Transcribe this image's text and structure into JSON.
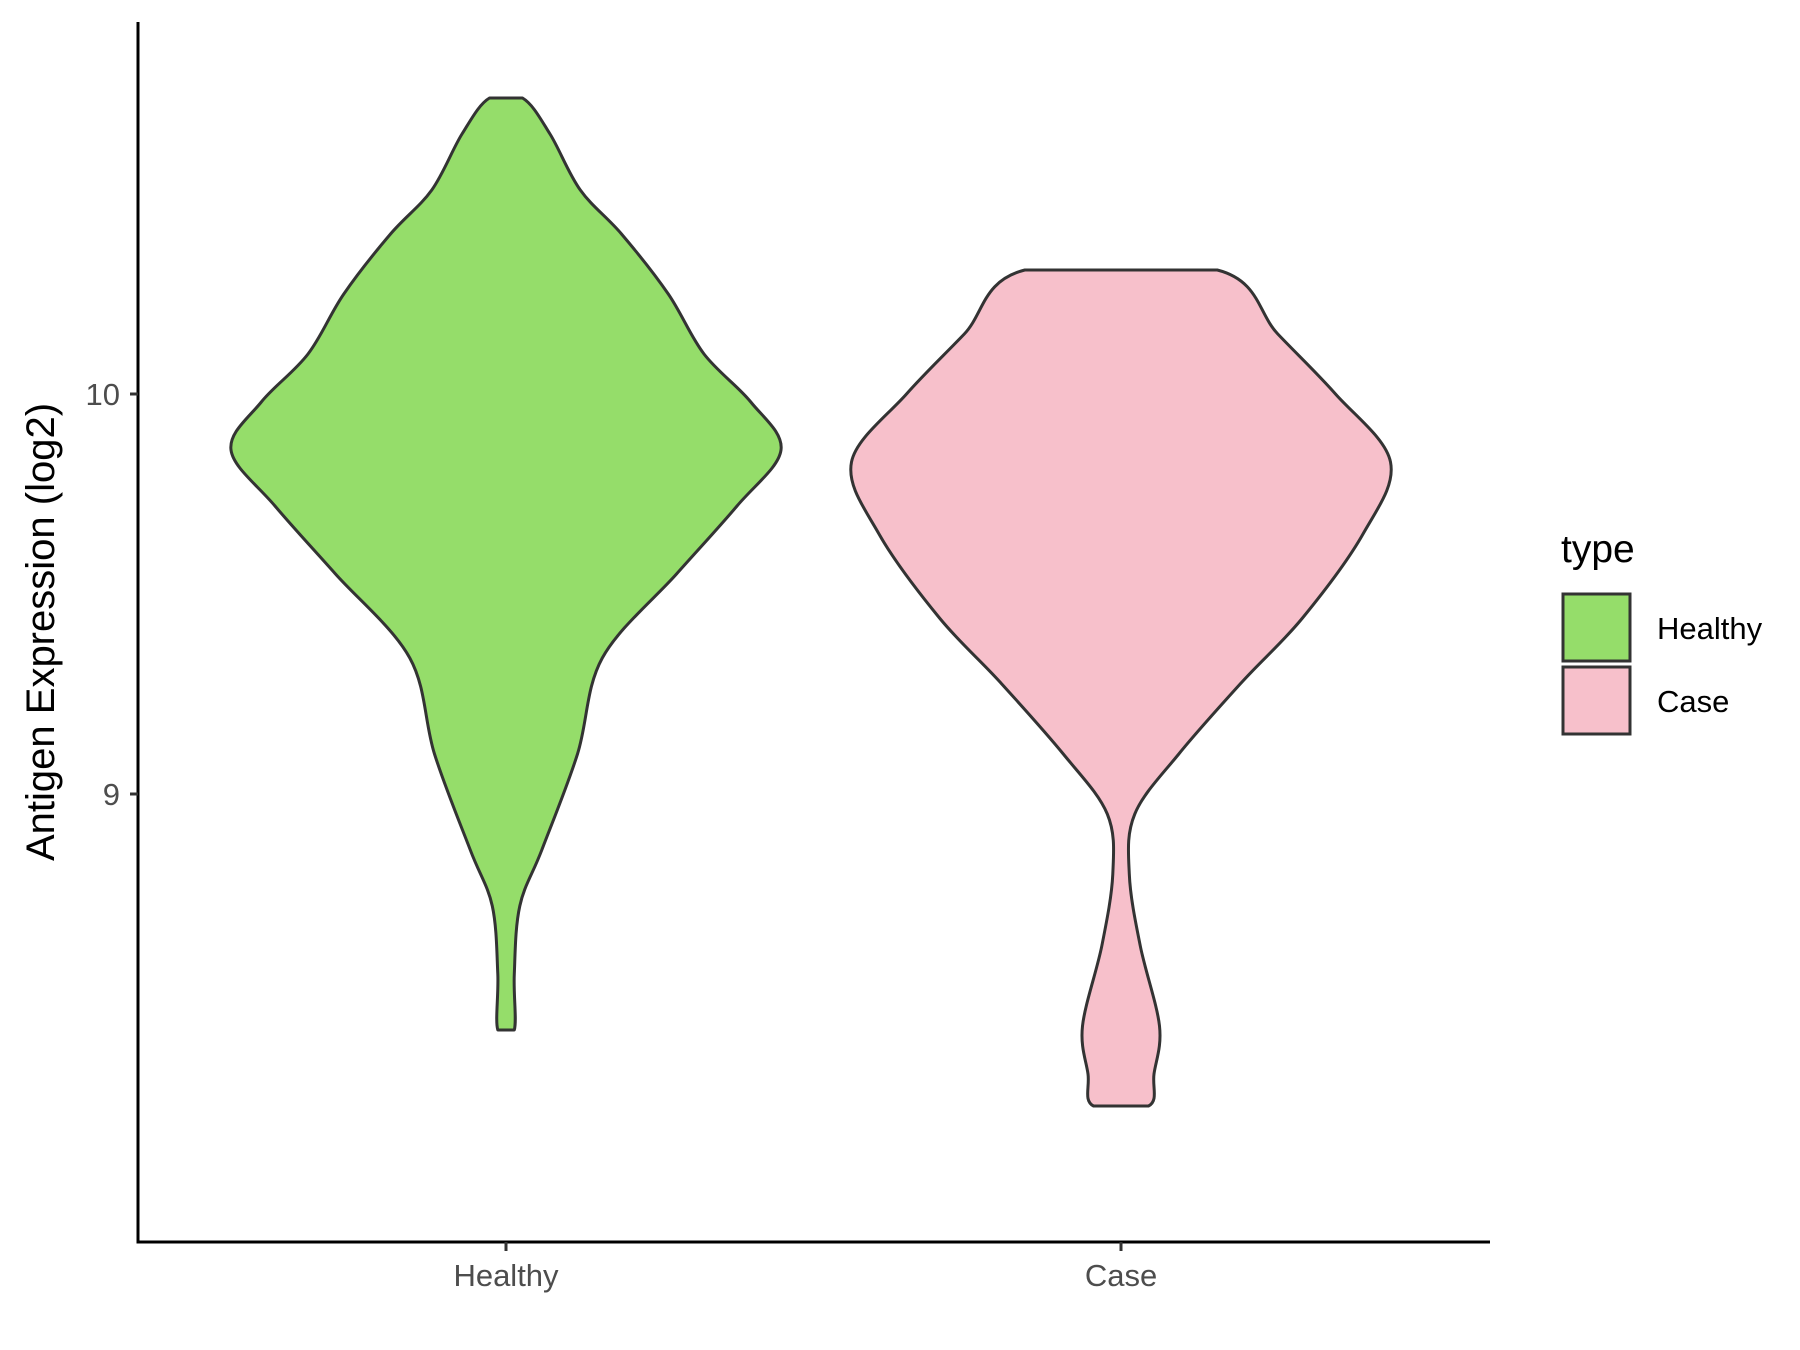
{
  "chart_data": {
    "type": "violin",
    "ylabel": "Antigen Expression (log2)",
    "xlabel": "",
    "categories": [
      "Healthy",
      "Case"
    ],
    "yticks": [
      9,
      10
    ],
    "ylim": [
      7.88,
      10.93
    ],
    "grid": false,
    "legend": {
      "title": "type",
      "position": "right",
      "entries": [
        {
          "label": "Healthy",
          "color": "#95dd6a"
        },
        {
          "label": "Case",
          "color": "#f7c0cb"
        }
      ]
    },
    "series": [
      {
        "category": "Healthy",
        "color": "#95dd6a",
        "profile": [
          [
            10.74,
            0.06
          ],
          [
            10.65,
            0.16
          ],
          [
            10.51,
            0.27
          ],
          [
            10.4,
            0.42
          ],
          [
            10.25,
            0.59
          ],
          [
            10.1,
            0.72
          ],
          [
            9.98,
            0.89
          ],
          [
            9.86,
            1.0
          ],
          [
            9.72,
            0.84
          ],
          [
            9.55,
            0.62
          ],
          [
            9.34,
            0.35
          ],
          [
            9.1,
            0.26
          ],
          [
            8.86,
            0.13
          ],
          [
            8.72,
            0.05
          ],
          [
            8.55,
            0.03
          ],
          [
            8.41,
            0.03
          ]
        ]
      },
      {
        "category": "Case",
        "color": "#f7c0cb",
        "profile": [
          [
            10.31,
            0.35
          ],
          [
            10.15,
            0.57
          ],
          [
            10.0,
            0.78
          ],
          [
            9.83,
            0.98
          ],
          [
            9.65,
            0.88
          ],
          [
            9.44,
            0.66
          ],
          [
            9.28,
            0.44
          ],
          [
            9.1,
            0.21
          ],
          [
            8.95,
            0.05
          ],
          [
            8.8,
            0.03
          ],
          [
            8.62,
            0.07
          ],
          [
            8.42,
            0.14
          ],
          [
            8.3,
            0.12
          ],
          [
            8.22,
            0.1
          ]
        ]
      }
    ]
  }
}
